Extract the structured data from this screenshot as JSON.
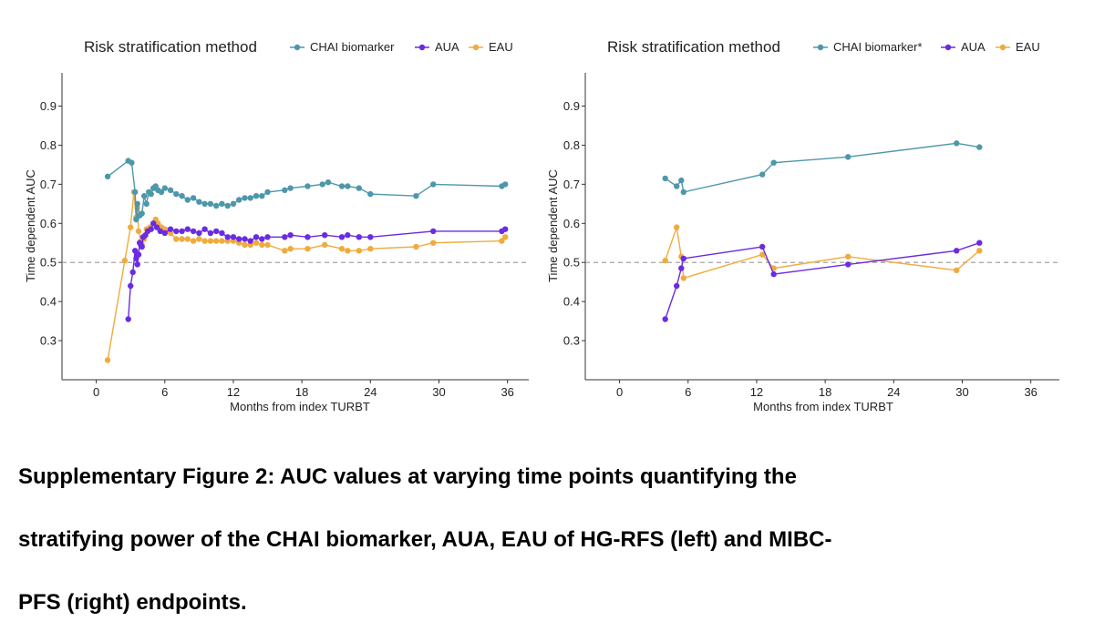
{
  "colors": {
    "chai": "#4d97ab",
    "aua": "#6a2be2",
    "eau": "#f0ab3e",
    "axis": "#333333",
    "ref": "#999999"
  },
  "legend_left": {
    "title": "Risk stratification method",
    "labels": [
      "CHAI biomarker",
      "AUA",
      "EAU"
    ]
  },
  "legend_right": {
    "title": "Risk stratification method",
    "labels": [
      "CHAI biomarker*",
      "AUA",
      "EAU"
    ]
  },
  "chart_data": [
    {
      "type": "line",
      "panel": "left",
      "xlabel": "Months from index TURBT",
      "ylabel": "Time dependent AUC",
      "xlim": [
        -3,
        38.5
      ],
      "ylim": [
        0.2,
        0.985
      ],
      "x_ticks": [
        0,
        6,
        12,
        18,
        24,
        30,
        36
      ],
      "y_ticks": [
        0.3,
        0.4,
        0.5,
        0.6,
        0.7,
        0.8,
        0.9
      ],
      "reference_line": 0.5,
      "series": [
        {
          "name": "CHAI biomarker",
          "key": "chai",
          "x": [
            1,
            2.8,
            3.1,
            3.4,
            3.5,
            3.6,
            3.8,
            4.0,
            4.2,
            4.4,
            4.6,
            4.8,
            5.0,
            5.2,
            5.4,
            5.7,
            6.0,
            6.5,
            7.0,
            7.5,
            8.0,
            8.5,
            9.0,
            9.5,
            10.0,
            10.5,
            11.0,
            11.5,
            12.0,
            12.5,
            13.0,
            13.5,
            14.0,
            14.5,
            15.0,
            16.5,
            17.0,
            18.5,
            19.8,
            20.3,
            21.5,
            22.0,
            23.0,
            24.0,
            28.0,
            29.5,
            35.5,
            35.8
          ],
          "values": [
            0.72,
            0.76,
            0.755,
            0.68,
            0.61,
            0.65,
            0.62,
            0.625,
            0.67,
            0.65,
            0.68,
            0.675,
            0.69,
            0.695,
            0.685,
            0.68,
            0.69,
            0.685,
            0.675,
            0.67,
            0.66,
            0.665,
            0.655,
            0.65,
            0.65,
            0.645,
            0.65,
            0.645,
            0.65,
            0.66,
            0.665,
            0.665,
            0.67,
            0.67,
            0.68,
            0.685,
            0.69,
            0.695,
            0.7,
            0.705,
            0.695,
            0.695,
            0.69,
            0.675,
            0.67,
            0.7,
            0.695,
            0.7
          ]
        },
        {
          "name": "AUA",
          "key": "aua",
          "x": [
            2.8,
            3.0,
            3.2,
            3.4,
            3.5,
            3.6,
            3.7,
            3.8,
            3.9,
            4.0,
            4.1,
            4.3,
            4.5,
            4.8,
            5.0,
            5.3,
            5.6,
            6.0,
            6.5,
            7.0,
            7.5,
            8.0,
            8.5,
            9.0,
            9.5,
            10.0,
            10.5,
            11.0,
            11.5,
            12.0,
            12.5,
            13.0,
            13.5,
            14.0,
            14.5,
            15.0,
            16.5,
            17.0,
            18.5,
            20.0,
            21.5,
            22.0,
            23.0,
            24.0,
            29.5,
            35.5,
            35.8
          ],
          "values": [
            0.355,
            0.44,
            0.475,
            0.53,
            0.51,
            0.495,
            0.52,
            0.55,
            0.545,
            0.54,
            0.565,
            0.57,
            0.58,
            0.585,
            0.6,
            0.59,
            0.58,
            0.575,
            0.585,
            0.58,
            0.58,
            0.585,
            0.58,
            0.575,
            0.585,
            0.575,
            0.58,
            0.575,
            0.565,
            0.565,
            0.56,
            0.56,
            0.555,
            0.565,
            0.56,
            0.565,
            0.565,
            0.57,
            0.565,
            0.57,
            0.565,
            0.57,
            0.565,
            0.565,
            0.58,
            0.58,
            0.585
          ]
        },
        {
          "name": "EAU",
          "key": "eau",
          "x": [
            1,
            2.5,
            3.0,
            3.3,
            3.5,
            3.6,
            3.7,
            3.9,
            4.0,
            4.2,
            4.4,
            4.7,
            5.0,
            5.2,
            5.4,
            5.7,
            6.0,
            6.5,
            7.0,
            7.5,
            8.0,
            8.5,
            9.0,
            9.5,
            10.0,
            10.5,
            11.0,
            11.5,
            12.0,
            12.5,
            13.0,
            13.5,
            14.0,
            14.5,
            15.0,
            16.5,
            17.0,
            18.5,
            20.0,
            21.5,
            22.0,
            23.0,
            24.0,
            28.0,
            29.5,
            35.5,
            35.8
          ],
          "values": [
            0.25,
            0.505,
            0.59,
            0.68,
            0.615,
            0.64,
            0.58,
            0.555,
            0.545,
            0.56,
            0.585,
            0.59,
            0.6,
            0.61,
            0.6,
            0.59,
            0.585,
            0.575,
            0.56,
            0.56,
            0.56,
            0.555,
            0.56,
            0.555,
            0.555,
            0.555,
            0.555,
            0.555,
            0.555,
            0.55,
            0.545,
            0.545,
            0.55,
            0.545,
            0.545,
            0.53,
            0.535,
            0.535,
            0.545,
            0.535,
            0.53,
            0.53,
            0.535,
            0.54,
            0.55,
            0.555,
            0.565
          ]
        }
      ]
    },
    {
      "type": "line",
      "panel": "right",
      "xlabel": "Months from index TURBT",
      "ylabel": "Time dependent AUC",
      "xlim": [
        -3,
        38.5
      ],
      "ylim": [
        0.2,
        0.985
      ],
      "x_ticks": [
        0,
        6,
        12,
        18,
        24,
        30,
        36
      ],
      "y_ticks": [
        0.3,
        0.4,
        0.5,
        0.6,
        0.7,
        0.8,
        0.9
      ],
      "reference_line": 0.5,
      "series": [
        {
          "name": "CHAI biomarker*",
          "key": "chai",
          "x": [
            4.0,
            5.0,
            5.4,
            5.6,
            12.5,
            13.5,
            20.0,
            29.5,
            31.5
          ],
          "values": [
            0.715,
            0.695,
            0.71,
            0.68,
            0.725,
            0.755,
            0.77,
            0.805,
            0.795
          ]
        },
        {
          "name": "AUA",
          "key": "aua",
          "x": [
            4.0,
            5.0,
            5.4,
            5.6,
            12.5,
            13.5,
            20.0,
            29.5,
            31.5
          ],
          "values": [
            0.355,
            0.44,
            0.485,
            0.51,
            0.54,
            0.47,
            0.495,
            0.53,
            0.55
          ]
        },
        {
          "name": "EAU",
          "key": "eau",
          "x": [
            4.0,
            5.0,
            5.4,
            5.6,
            12.5,
            13.5,
            20.0,
            29.5,
            31.5
          ],
          "values": [
            0.505,
            0.59,
            0.515,
            0.46,
            0.52,
            0.485,
            0.515,
            0.48,
            0.53
          ]
        }
      ]
    }
  ],
  "caption": {
    "line1": "Supplementary Figure 2: AUC values at varying time points quantifying the",
    "line2": "stratifying power of the CHAI biomarker, AUA, EAU of HG-RFS (left) and MIBC-",
    "line3": "PFS (right) endpoints."
  }
}
